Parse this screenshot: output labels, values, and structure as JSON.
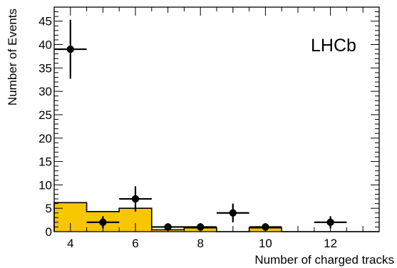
{
  "chart_data": {
    "type": "bar",
    "title": "",
    "annotation": "LHCb",
    "xlabel": "Number of charged tracks",
    "ylabel": "Number of Events",
    "xlim": [
      3.5,
      13.5
    ],
    "ylim": [
      0,
      48
    ],
    "x_ticks": [
      4,
      6,
      8,
      10,
      12
    ],
    "y_ticks": [
      0,
      5,
      10,
      15,
      20,
      25,
      30,
      35,
      40,
      45
    ],
    "grid": false,
    "colors": {
      "background_fill": "#f7c600",
      "points": "#000000"
    },
    "background_histogram": {
      "bins": [
        {
          "x_low": 3.5,
          "x_high": 4.5,
          "value": 6.2
        },
        {
          "x_low": 4.5,
          "x_high": 5.5,
          "value": 4.3
        },
        {
          "x_low": 5.5,
          "x_high": 6.5,
          "value": 5.0
        },
        {
          "x_low": 6.5,
          "x_high": 7.5,
          "value": 0.4
        },
        {
          "x_low": 7.5,
          "x_high": 8.5,
          "value": 0.8
        },
        {
          "x_low": 8.5,
          "x_high": 9.5,
          "value": 0.0
        },
        {
          "x_low": 9.5,
          "x_high": 10.5,
          "value": 0.8
        },
        {
          "x_low": 10.5,
          "x_high": 11.5,
          "value": 0.0
        },
        {
          "x_low": 11.5,
          "x_high": 12.5,
          "value": 0.0
        },
        {
          "x_low": 12.5,
          "x_high": 13.5,
          "value": 0.0
        }
      ]
    },
    "data_points": [
      {
        "x": 4,
        "y": 39,
        "y_err_low": 6.3,
        "y_err_high": 6.3
      },
      {
        "x": 5,
        "y": 2,
        "y_err_low": 1.3,
        "y_err_high": 1.3
      },
      {
        "x": 6,
        "y": 7,
        "y_err_low": 2.7,
        "y_err_high": 2.7
      },
      {
        "x": 7,
        "y": 1,
        "y_err_low": 0.8,
        "y_err_high": 0.8
      },
      {
        "x": 8,
        "y": 1,
        "y_err_low": 0.8,
        "y_err_high": 0.8
      },
      {
        "x": 9,
        "y": 4,
        "y_err_low": 2.0,
        "y_err_high": 2.0
      },
      {
        "x": 10,
        "y": 1,
        "y_err_low": 0.8,
        "y_err_high": 0.8
      },
      {
        "x": 12,
        "y": 2,
        "y_err_low": 1.3,
        "y_err_high": 1.3
      }
    ]
  }
}
